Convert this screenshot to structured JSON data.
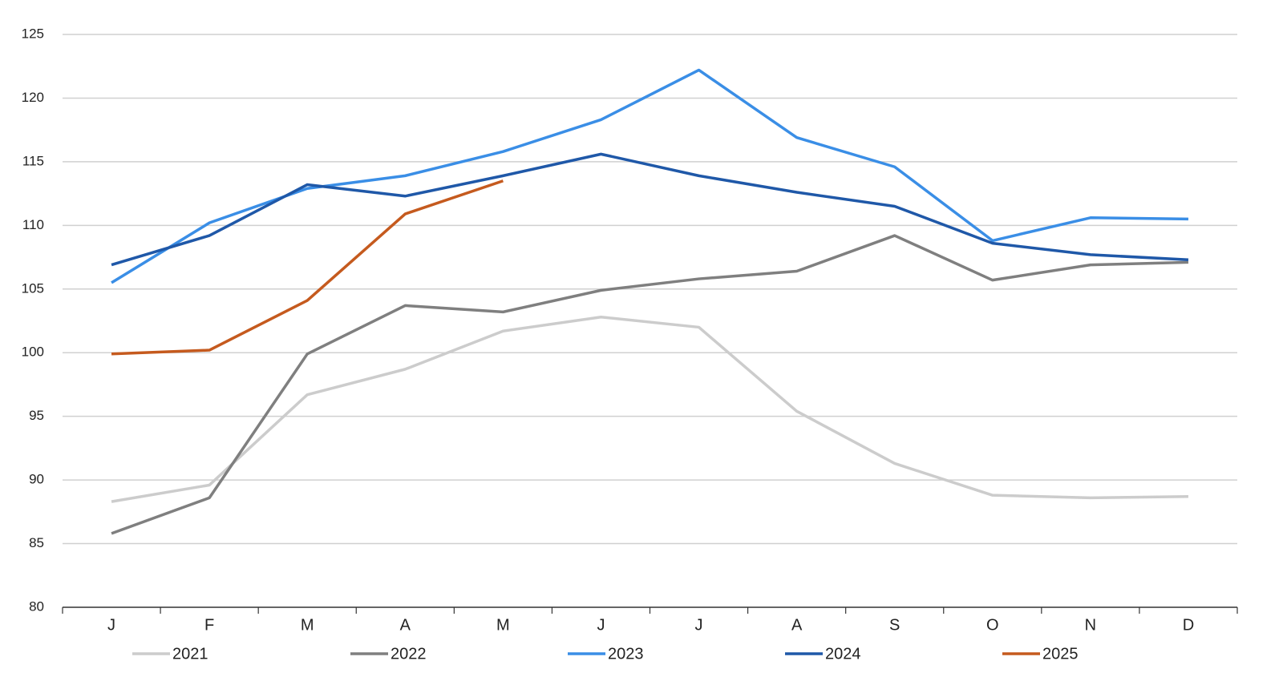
{
  "chart_data": {
    "type": "line",
    "categories": [
      "J",
      "F",
      "M",
      "A",
      "M",
      "J",
      "J",
      "A",
      "S",
      "O",
      "N",
      "D"
    ],
    "series": [
      {
        "name": "2021",
        "color": "#cccccc",
        "values": [
          88.3,
          89.6,
          96.7,
          98.7,
          101.7,
          102.8,
          102.0,
          95.4,
          91.3,
          88.8,
          88.6,
          88.7
        ]
      },
      {
        "name": "2022",
        "color": "#7f7f7f",
        "values": [
          85.8,
          88.6,
          99.9,
          103.7,
          103.2,
          104.9,
          105.8,
          106.4,
          109.2,
          105.7,
          106.9,
          107.1
        ]
      },
      {
        "name": "2023",
        "color": "#3a8ee6",
        "values": [
          105.5,
          110.2,
          112.9,
          113.9,
          115.8,
          118.3,
          122.2,
          116.9,
          114.6,
          108.8,
          110.6,
          110.5
        ]
      },
      {
        "name": "2024",
        "color": "#1f58a8",
        "values": [
          106.9,
          109.2,
          113.2,
          112.3,
          113.9,
          115.6,
          113.9,
          112.6,
          111.5,
          108.6,
          107.7,
          107.3
        ]
      },
      {
        "name": "2025",
        "color": "#c55a1e",
        "values": [
          99.9,
          100.2,
          104.1,
          110.9,
          113.5,
          null,
          null,
          null,
          null,
          null,
          null,
          null
        ]
      }
    ],
    "ylim": [
      80,
      125
    ],
    "yticks": [
      80,
      85,
      90,
      95,
      100,
      105,
      110,
      115,
      120,
      125
    ],
    "grid": true,
    "legend": "bottom"
  }
}
